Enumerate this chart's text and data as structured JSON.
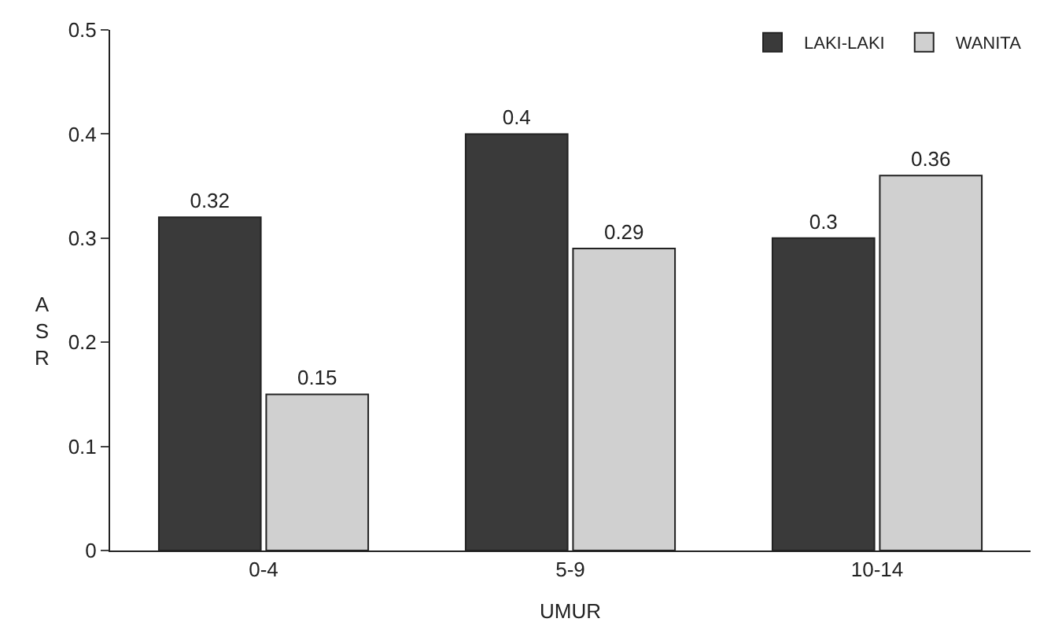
{
  "chart_data": {
    "type": "bar",
    "xlabel": "UMUR",
    "ylabel": "ASR",
    "categories": [
      "0-4",
      "5-9",
      "10-14"
    ],
    "series": [
      {
        "name": "LAKI-LAKI",
        "color": "#3a3a3a",
        "values": [
          0.32,
          0.4,
          0.3
        ]
      },
      {
        "name": "WANITA",
        "color": "#d0d0d0",
        "values": [
          0.15,
          0.29,
          0.36
        ]
      }
    ],
    "ylim": [
      0,
      0.5
    ],
    "yticks": [
      0,
      0.1,
      0.2,
      0.3,
      0.4,
      0.5
    ],
    "data_labels": true,
    "legend": "top right",
    "grid": false
  }
}
